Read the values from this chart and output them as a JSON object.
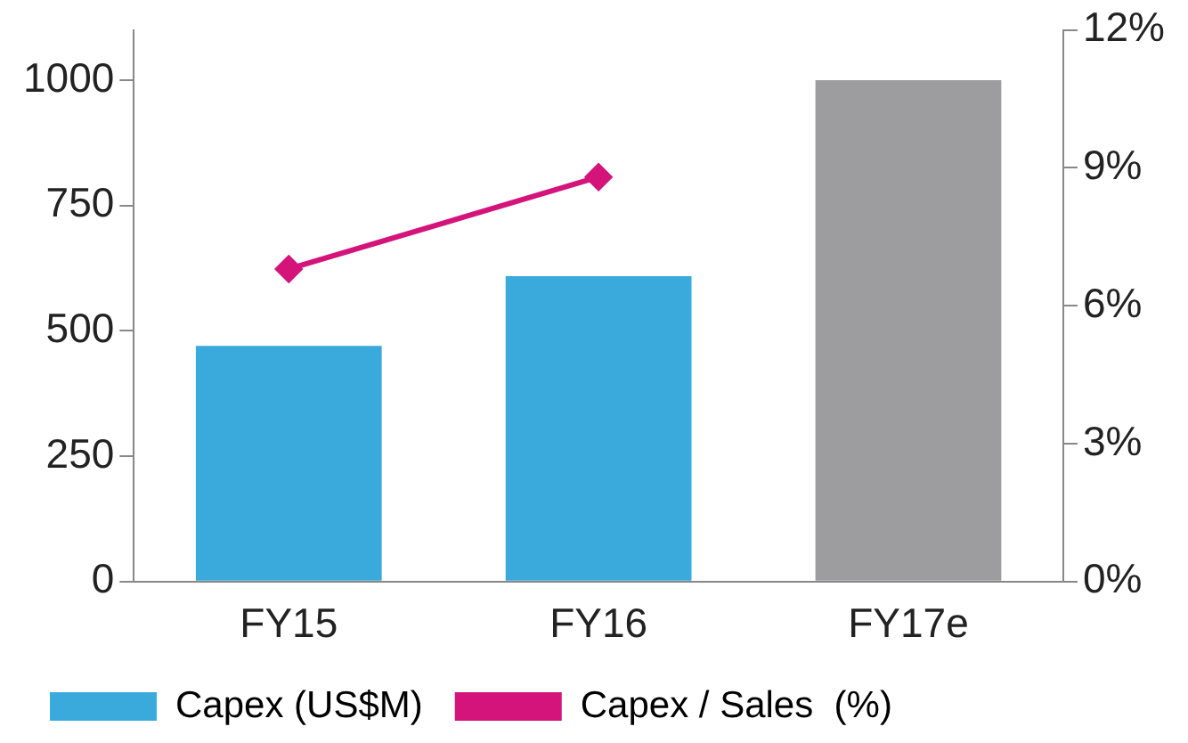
{
  "chart_data": {
    "type": "bar",
    "categories": [
      "FY15",
      "FY16",
      "FY17e"
    ],
    "series": [
      {
        "name": "Capex (US$M)",
        "colors": [
          "#3aaadc",
          "#3aaadc",
          "#9d9d9f"
        ],
        "color": "#3aaadc",
        "values": [
          470,
          609,
          1000
        ]
      },
      {
        "name": "Capex / Sales  (%)",
        "type": "line",
        "axis": "y2",
        "color": "#d4147a",
        "values": [
          6.8,
          8.8,
          null
        ]
      }
    ],
    "ylim": [
      0,
      1100
    ],
    "yticks": [
      0,
      250,
      500,
      750,
      1000
    ],
    "y2lim": [
      0,
      12
    ],
    "y2ticks": [
      {
        "value": 0,
        "label": "0%"
      },
      {
        "value": 3,
        "label": "3%"
      },
      {
        "value": 6,
        "label": "6%"
      },
      {
        "value": 9,
        "label": "9%"
      },
      {
        "value": 12,
        "label": "12%"
      }
    ],
    "marker": "diamond",
    "grid": false,
    "legend": "bottom"
  }
}
